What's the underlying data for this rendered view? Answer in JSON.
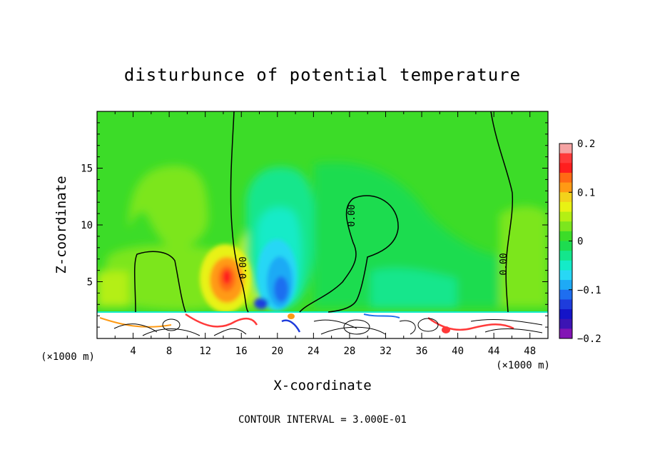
{
  "chart_data": {
    "type": "heatmap",
    "title": "disturbunce of potential temperature",
    "xlabel": "X-coordinate",
    "ylabel": "Z-coordinate",
    "x_unit": "(×1000 m)",
    "xlim": [
      0,
      50
    ],
    "ylim": [
      0,
      20
    ],
    "x_ticks": [
      "4",
      "8",
      "12",
      "16",
      "20",
      "24",
      "28",
      "32",
      "36",
      "40",
      "44",
      "48"
    ],
    "y_ticks": [
      "5",
      "10",
      "15"
    ],
    "footer": "CONTOUR INTERVAL = 3.000E-01",
    "contour_labels": [
      "0.00",
      "0.00",
      "0.00"
    ],
    "colorbar": {
      "range": [
        -0.2,
        0.2
      ],
      "tick_labels": [
        "0.2",
        "0.1",
        "0",
        "−0.1",
        "−0.2"
      ],
      "colors": [
        "#f5a3a3",
        "#ff3a3a",
        "#ff1e1e",
        "#ff6a14",
        "#ff9a14",
        "#f2d21b",
        "#e8f214",
        "#b4ef14",
        "#7ce61e",
        "#3cdc28",
        "#1edc50",
        "#14e68c",
        "#14ebc8",
        "#28d7f5",
        "#1eaaf5",
        "#1e6ef0",
        "#1e3cdc",
        "#1414c8",
        "#3c14b4",
        "#8214b4"
      ]
    },
    "features": [
      {
        "x": 14.4,
        "z": 5.4,
        "value": 0.13,
        "sign": "warm"
      },
      {
        "x": 20,
        "z": 5,
        "value": -0.09,
        "sign": "cool"
      },
      {
        "x": 4,
        "z": 11,
        "value": 0.03,
        "sign": "warm"
      },
      {
        "x": 21,
        "z": 13,
        "value": -0.03,
        "sign": "cool"
      }
    ]
  }
}
